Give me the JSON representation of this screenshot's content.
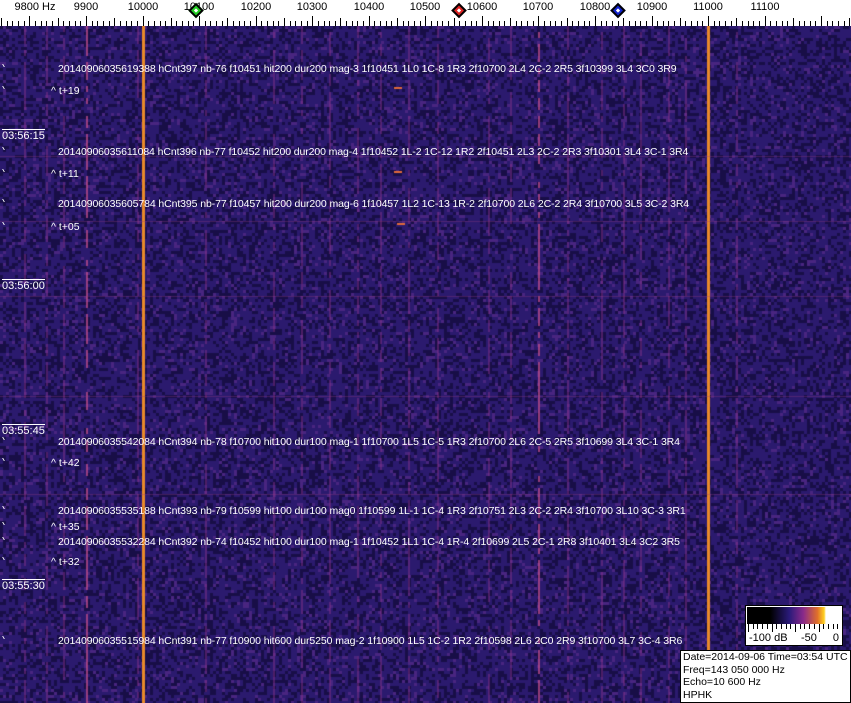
{
  "axis": {
    "unit_label": "9800 Hz",
    "ticks": [
      "9900",
      "10000",
      "10100",
      "10200",
      "10300",
      "10400",
      "10500",
      "10600",
      "10700",
      "10800",
      "10900",
      "11000",
      "11100"
    ],
    "markers": [
      {
        "name": "green-marker",
        "freq_hz": 10095,
        "color": "#22cc22"
      },
      {
        "name": "red-marker",
        "freq_hz": 10560,
        "color": "#dd2222"
      },
      {
        "name": "blue-marker",
        "freq_hz": 10840,
        "color": "#1122cc"
      }
    ]
  },
  "time_labels": [
    "03:56:15",
    "03:56:00",
    "03:55:45",
    "03:55:30"
  ],
  "detections": [
    {
      "text": "20140906035619388 hCnt397 nb-76 f10451 hit200 dur200 mag-3 1f10451 1L0 1C-8 1R3 2f10700 2L4 2C-2 2R5 3f10399 3L4 3C0 3R9",
      "tplus": "^ t+19"
    },
    {
      "text": "20140906035611084 hCnt396 nb-77 f10452 hit200 dur200 mag-4 1f10452 1L-2 1C-12 1R2 2f10451 2L3 2C-2 2R3 3f10301 3L4 3C-1 3R4",
      "tplus": "^ t+11"
    },
    {
      "text": "20140906035605784 hCnt395 nb-77 f10457 hit200 dur200 mag-6 1f10457 1L2 1C-13 1R-2 2f10700 2L6 2C-2 2R4 3f10700 3L5 3C-2 3R4",
      "tplus": "^ t+05"
    },
    {
      "text": "20140906035542084 hCnt394 nb-78 f10700 hit100 dur100 mag-1 1f10700 1L5 1C-5 1R3 2f10700 2L6 2C-5 2R5 3f10699 3L4 3C-1 3R4",
      "tplus": "^ t+42"
    },
    {
      "text": "20140906035535188 hCnt393 nb-79 f10599 hit100 dur100 mag0 1f10599 1L-1 1C-4 1R3 2f10751 2L3 2C-2 2R4 3f10700 3L10 3C-3 3R1",
      "tplus": "^ t+35"
    },
    {
      "text": "20140906035532284 hCnt392 nb-74 f10452 hit100 dur100 mag-1 1f10452 1L1 1C-4 1R-4 2f10699 2L5 2C-1 2R8 3f10401 3L4 3C2 3R5",
      "tplus": "^ t+32"
    },
    {
      "text": "20140906035515984 hCnt391 nb-77 f10900 hit600 dur5250 mag-2 1f10900 1L5 1C-2 1R2 2f10598 2L6 2C0 2R9 3f10700 3L7 3C-4 3R6",
      "tplus": ""
    }
  ],
  "colorbar": {
    "labels": [
      "-100 dB",
      "-50",
      "0"
    ]
  },
  "info": {
    "date_time": "Date=2014-09-06 Time=03:54 UTC",
    "freq": "Freq=143 050 000 Hz",
    "echo": "Echo=10 600 Hz",
    "station": "HPHK"
  },
  "colors": {
    "background": "#2b1a6e",
    "strong_line": "#e88a2a",
    "weak_line": "#8a2a8a"
  }
}
